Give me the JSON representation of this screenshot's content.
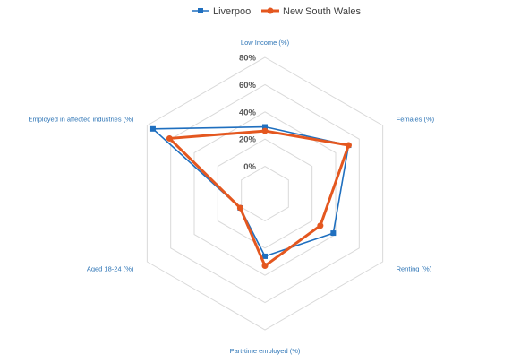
{
  "chart_data": {
    "type": "radar",
    "title": "",
    "axes": [
      "Low Income (%)",
      "Females (%)",
      "Renting (%)",
      "Part-time employed (%)",
      "Aged 18-24 (%)",
      "Employed in affected industries (%)"
    ],
    "series": [
      {
        "name": "Liverpool",
        "color": "#1f6fbf",
        "marker": "square",
        "values": [
          29,
          51,
          38,
          26,
          1,
          75
        ]
      },
      {
        "name": "New South Wales",
        "color": "#e4571f",
        "marker": "circle",
        "values": [
          26,
          51,
          27,
          33,
          1,
          61
        ]
      }
    ],
    "r_ticks": [
      "0%",
      "20%",
      "40%",
      "60%",
      "80%"
    ],
    "r_tick_values": [
      0,
      20,
      40,
      60,
      80
    ],
    "r_range": [
      -20,
      80
    ],
    "grid": true,
    "legend_position": "top"
  }
}
